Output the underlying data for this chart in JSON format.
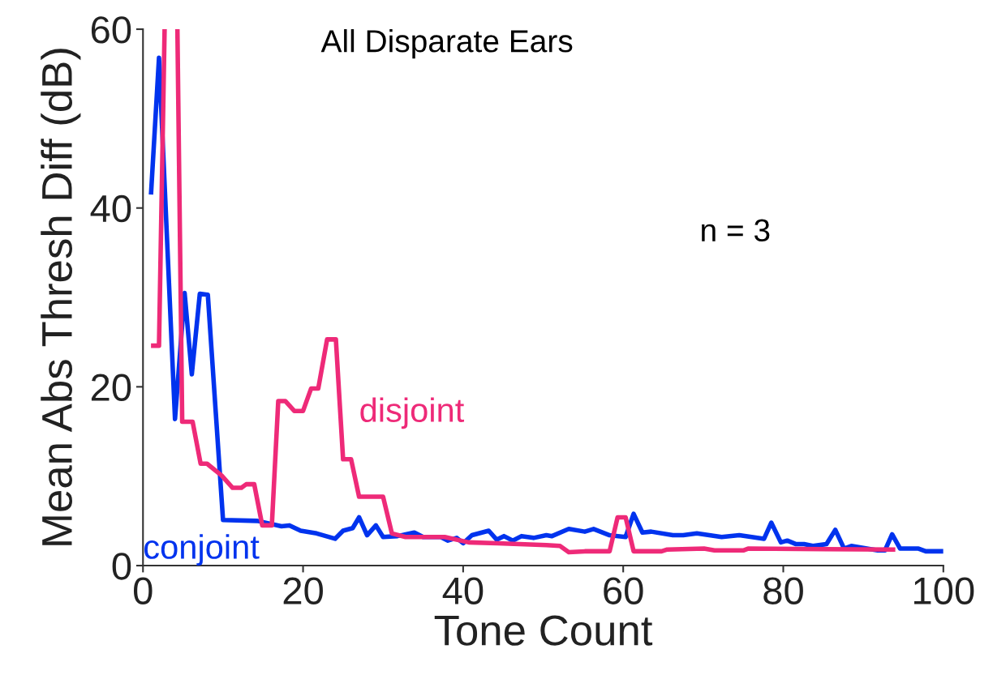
{
  "chart_data": {
    "type": "line",
    "title": "All Disparate Ears",
    "xlabel": "Tone Count",
    "ylabel": "Mean Abs Thresh Diff (dB)",
    "annotations": [
      "n = 3"
    ],
    "xlim": [
      0,
      100
    ],
    "ylim": [
      0,
      60
    ],
    "xticks": [
      0,
      20,
      40,
      60,
      80,
      100
    ],
    "yticks": [
      0,
      20,
      40,
      60
    ],
    "grid": false,
    "legend": false,
    "marker": "none",
    "line_style": "solid",
    "series": [
      {
        "name": "disjoint",
        "color": "#ee2a78",
        "x": [
          1,
          2,
          2.7,
          3,
          4.3,
          4.9,
          6.2,
          7.2,
          8,
          9.8,
          11.2,
          12.3,
          12.9,
          13.9,
          14.9,
          16.1,
          16.9,
          17.8,
          18.9,
          20,
          21,
          21.9,
          23,
          24.1,
          25,
          26,
          27,
          30,
          31.1,
          32.8,
          37.7,
          40.7,
          44.3,
          50.4,
          52.1,
          53.2,
          55.2,
          58.3,
          59.3,
          60.3,
          61.3,
          64.8,
          65.5,
          70.1,
          71.4,
          75,
          75.6,
          94
        ],
        "values": [
          24.6,
          24.6,
          60,
          null,
          60,
          16.1,
          16.1,
          11.4,
          11.4,
          10.1,
          8.7,
          8.7,
          9.1,
          9.1,
          4.5,
          4.5,
          18.4,
          18.4,
          17.3,
          17.3,
          19.8,
          19.8,
          25.3,
          25.3,
          11.9,
          11.9,
          7.7,
          7.7,
          3.6,
          3.2,
          3.2,
          2.6,
          2.5,
          2.3,
          2.2,
          1.5,
          1.6,
          1.6,
          5.4,
          5.4,
          1.6,
          1.6,
          1.8,
          1.9,
          1.7,
          1.7,
          1.9,
          1.8
        ]
      },
      {
        "name": "conjoint",
        "color": "#0033ee",
        "x": [
          1,
          2,
          4,
          5.2,
          6.1,
          7.1,
          8.1,
          10,
          14.3,
          17.3,
          18.3,
          19.7,
          21.7,
          24,
          25,
          26.2,
          27,
          28,
          29.1,
          30,
          31.8,
          33.9,
          35,
          37.2,
          38.1,
          39.2,
          40,
          41.1,
          43.2,
          44.2,
          45.1,
          46.2,
          47.3,
          48.8,
          50.4,
          51.1,
          53.2,
          55.2,
          56.3,
          58.3,
          60.3,
          61.3,
          62.4,
          63.5,
          66.2,
          67.5,
          69.2,
          72.3,
          74.5,
          77.6,
          78.5,
          79.7,
          80.5,
          81.6,
          82.6,
          83.7,
          85.4,
          86.5,
          87.6,
          88.5,
          91.8,
          92.7,
          93.6,
          94.6,
          96.9,
          97.8,
          100
        ],
        "values": [
          41.5,
          56.8,
          16.4,
          30.5,
          21.4,
          30.4,
          30.3,
          5.1,
          5.0,
          4.4,
          4.5,
          3.9,
          3.6,
          3.0,
          3.9,
          4.2,
          5.4,
          3.4,
          4.5,
          3.2,
          3.3,
          3.7,
          3.2,
          3.2,
          2.8,
          3.1,
          2.5,
          3.4,
          3.9,
          2.9,
          3.3,
          2.8,
          3.3,
          3.1,
          3.4,
          3.3,
          4.1,
          3.8,
          4.1,
          3.4,
          3.2,
          5.8,
          3.7,
          3.8,
          3.4,
          3.4,
          3.6,
          3.2,
          3.4,
          3.0,
          4.8,
          2.6,
          2.8,
          2.4,
          2.4,
          2.2,
          2.4,
          4.0,
          1.9,
          2.2,
          1.7,
          1.7,
          3.5,
          1.9,
          1.9,
          1.6,
          1.6
        ]
      }
    ]
  }
}
